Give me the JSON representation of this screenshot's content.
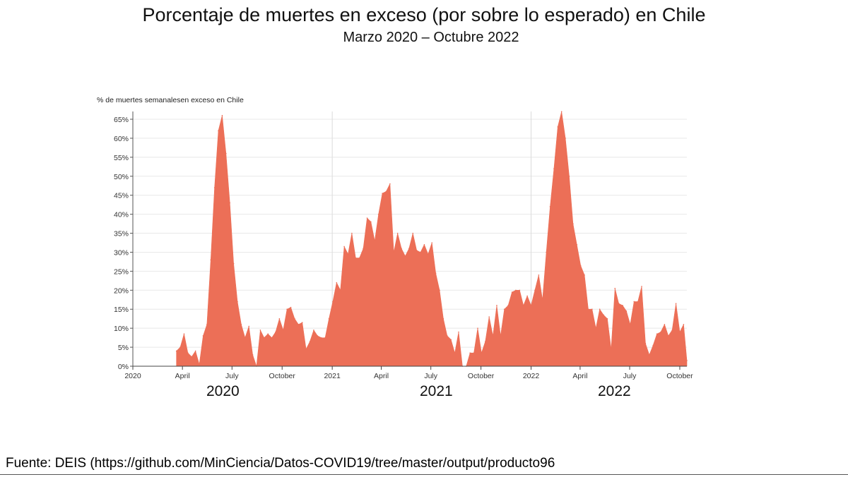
{
  "header": {
    "title": "Porcentaje de muertes en exceso (por sobre lo esperado) en Chile",
    "subtitle": "Marzo 2020 – Octubre 2022"
  },
  "chart_data": {
    "type": "area",
    "ylabel": "% de muertes semanalesen exceso en Chile",
    "ylim": [
      0,
      65
    ],
    "xlim": [
      "2020-01-01",
      "2022-10-14"
    ],
    "grid": true,
    "color": "#ec6f57",
    "y_ticks": [
      "0%",
      "5%",
      "10%",
      "15%",
      "20%",
      "25%",
      "30%",
      "35%",
      "40%",
      "45%",
      "50%",
      "55%",
      "60%",
      "65%"
    ],
    "x_ticks": [
      {
        "date": "2020-01-01",
        "label": "2020"
      },
      {
        "date": "2020-04-01",
        "label": "April"
      },
      {
        "date": "2020-07-01",
        "label": "July"
      },
      {
        "date": "2020-10-01",
        "label": "October"
      },
      {
        "date": "2021-01-01",
        "label": "2021"
      },
      {
        "date": "2021-04-01",
        "label": "April"
      },
      {
        "date": "2021-07-01",
        "label": "July"
      },
      {
        "date": "2021-10-01",
        "label": "October"
      },
      {
        "date": "2022-01-01",
        "label": "2022"
      },
      {
        "date": "2022-04-01",
        "label": "April"
      },
      {
        "date": "2022-07-01",
        "label": "July"
      },
      {
        "date": "2022-10-01",
        "label": "October"
      }
    ],
    "x": [
      "2020-03-21",
      "2020-03-28",
      "2020-04-04",
      "2020-04-11",
      "2020-04-18",
      "2020-04-25",
      "2020-05-02",
      "2020-05-09",
      "2020-05-16",
      "2020-05-23",
      "2020-05-30",
      "2020-06-06",
      "2020-06-13",
      "2020-06-20",
      "2020-06-27",
      "2020-07-04",
      "2020-07-11",
      "2020-07-18",
      "2020-07-25",
      "2020-08-01",
      "2020-08-08",
      "2020-08-15",
      "2020-08-22",
      "2020-08-29",
      "2020-09-05",
      "2020-09-12",
      "2020-09-19",
      "2020-09-26",
      "2020-10-03",
      "2020-10-10",
      "2020-10-17",
      "2020-10-24",
      "2020-10-31",
      "2020-11-07",
      "2020-11-14",
      "2020-11-21",
      "2020-11-28",
      "2020-12-05",
      "2020-12-12",
      "2020-12-19",
      "2020-12-26",
      "2021-01-02",
      "2021-01-09",
      "2021-01-16",
      "2021-01-23",
      "2021-01-30",
      "2021-02-06",
      "2021-02-13",
      "2021-02-20",
      "2021-02-27",
      "2021-03-06",
      "2021-03-13",
      "2021-03-20",
      "2021-03-27",
      "2021-04-03",
      "2021-04-10",
      "2021-04-17",
      "2021-04-24",
      "2021-05-01",
      "2021-05-08",
      "2021-05-15",
      "2021-05-22",
      "2021-05-29",
      "2021-06-05",
      "2021-06-12",
      "2021-06-19",
      "2021-06-26",
      "2021-07-03",
      "2021-07-10",
      "2021-07-17",
      "2021-07-24",
      "2021-07-31",
      "2021-08-07",
      "2021-08-14",
      "2021-08-21",
      "2021-08-28",
      "2021-09-04",
      "2021-09-11",
      "2021-09-18",
      "2021-09-25",
      "2021-10-02",
      "2021-10-09",
      "2021-10-16",
      "2021-10-23",
      "2021-10-30",
      "2021-11-06",
      "2021-11-13",
      "2021-11-20",
      "2021-11-27",
      "2021-12-04",
      "2021-12-11",
      "2021-12-18",
      "2021-12-25",
      "2022-01-01",
      "2022-01-08",
      "2022-01-15",
      "2022-01-22",
      "2022-01-29",
      "2022-02-05",
      "2022-02-12",
      "2022-02-19",
      "2022-02-26",
      "2022-03-05",
      "2022-03-12",
      "2022-03-19",
      "2022-03-26",
      "2022-04-02",
      "2022-04-09",
      "2022-04-16",
      "2022-04-23",
      "2022-04-30",
      "2022-05-07",
      "2022-05-14",
      "2022-05-21",
      "2022-05-28",
      "2022-06-04",
      "2022-06-11",
      "2022-06-18",
      "2022-06-25",
      "2022-07-02",
      "2022-07-09",
      "2022-07-16",
      "2022-07-23",
      "2022-07-30",
      "2022-08-06",
      "2022-08-13",
      "2022-08-20",
      "2022-08-27",
      "2022-09-03",
      "2022-09-10",
      "2022-09-17",
      "2022-09-24",
      "2022-10-01",
      "2022-10-08",
      "2022-10-14"
    ],
    "series": [
      {
        "values": [
          4,
          5,
          8.5,
          3.5,
          2.5,
          4,
          0.5,
          8,
          11,
          28,
          47,
          62,
          66,
          56,
          43,
          27,
          17,
          11,
          7.5,
          10.5,
          3,
          0,
          9.5,
          7.5,
          8.5,
          7.5,
          9,
          12.5,
          9.5,
          15,
          15.5,
          12.5,
          11,
          11.5,
          4.5,
          6.5,
          9.5,
          8,
          7.5,
          7.5,
          12.5,
          17,
          22,
          20,
          31.5,
          29.5,
          35,
          28.5,
          28.5,
          31,
          39,
          38,
          33,
          40,
          45.5,
          46,
          48,
          30,
          35,
          31,
          29,
          31,
          35,
          30.5,
          30,
          32,
          29.5,
          32.5,
          24.5,
          20,
          12.5,
          8,
          7,
          3.5,
          9,
          0,
          0,
          3.5,
          3.5,
          10,
          3.5,
          6.5,
          13,
          8,
          16,
          8,
          15,
          16,
          19.5,
          20,
          20,
          16,
          18.5,
          16,
          20,
          24,
          17.5,
          30,
          42,
          52,
          63,
          67,
          60,
          50,
          37.5,
          32,
          26.5,
          24,
          15,
          15,
          10,
          15,
          13.5,
          12.5,
          4.5,
          20.5,
          16.5,
          16,
          14.5,
          11,
          17,
          17,
          21,
          6,
          3,
          5.5,
          8.5,
          9,
          11,
          8,
          9.5,
          16.5,
          9,
          11,
          1.5
        ]
      }
    ]
  },
  "year_labels": [
    "2020",
    "2021",
    "2022"
  ],
  "source": "Fuente: DEIS (https://github.com/MinCiencia/Datos-COVID19/tree/master/output/producto96"
}
